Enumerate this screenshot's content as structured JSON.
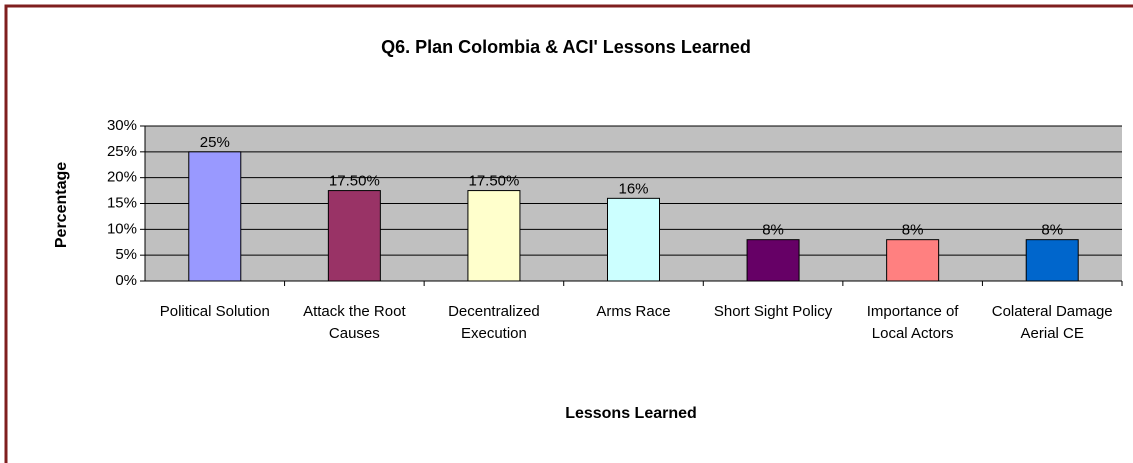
{
  "chart_data": {
    "type": "bar",
    "title": "Q6. Plan Colombia & ACI' Lessons Learned",
    "x_label": "Lessons Learned",
    "y_label": "Percentage",
    "categories": [
      "Political Solution",
      "Attack the Root Causes",
      "Decentralized Execution",
      "Arms Race",
      "Short Sight Policy",
      "Importance of Local Actors",
      "Colateral Damage Aerial CE"
    ],
    "values": [
      25,
      17.5,
      17.5,
      16,
      8,
      8,
      8
    ],
    "value_labels": [
      "25%",
      "17.50%",
      "17.50%",
      "16%",
      "8%",
      "8%",
      "8%"
    ],
    "colors": [
      "#9999ff",
      "#993366",
      "#ffffcc",
      "#ccffff",
      "#660066",
      "#ff8080",
      "#0066cc"
    ],
    "ylim": [
      0,
      30
    ],
    "yticks": [
      {
        "value": 0,
        "label": "0%"
      },
      {
        "value": 5,
        "label": "5%"
      },
      {
        "value": 10,
        "label": "10%"
      },
      {
        "value": 15,
        "label": "15%"
      },
      {
        "value": 20,
        "label": "20%"
      },
      {
        "value": 25,
        "label": "25%"
      },
      {
        "value": 30,
        "label": "30%"
      }
    ],
    "grid": true
  }
}
